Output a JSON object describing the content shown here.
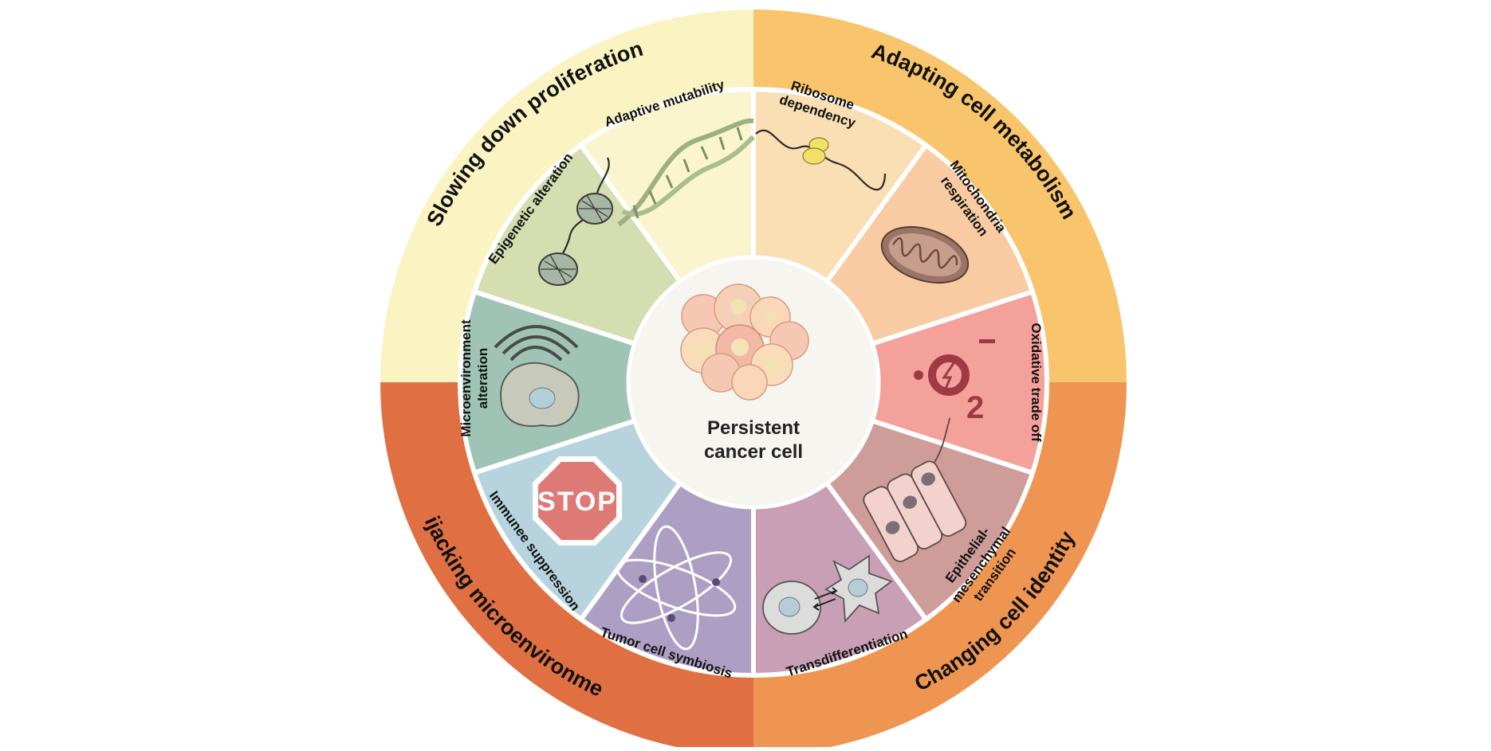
{
  "diagram": {
    "center": {
      "line1": "Persistent",
      "line2": "cancer cell",
      "fill": "#f7f5ef"
    },
    "quadrants": [
      {
        "id": "q-slowing",
        "label": "Slowing down proliferation",
        "color": "#faf3c2"
      },
      {
        "id": "q-adapting",
        "label": "Adapting cell metabolism",
        "color": "#f8c56c"
      },
      {
        "id": "q-changing",
        "label": "Changing cell identity",
        "color": "#ef9552"
      },
      {
        "id": "q-hijacking",
        "label": "Hijacking microenvironment",
        "color": "#e06f42"
      }
    ],
    "segments": [
      {
        "id": "ribosome",
        "lines": [
          "Ribosome",
          "dependency"
        ],
        "color": "#fbdfb4",
        "icon": "ribosome-icon"
      },
      {
        "id": "mitochondria",
        "lines": [
          "Mitochondria",
          "respiration"
        ],
        "color": "#f8cba2",
        "icon": "mitochondria-icon"
      },
      {
        "id": "oxidative",
        "lines": [
          "Oxidative trade off"
        ],
        "color": "#f3a19a",
        "icon": "superoxide-icon"
      },
      {
        "id": "emt",
        "lines": [
          "Epithelial-",
          "mesenchymal",
          "transition"
        ],
        "color": "#cf9d99",
        "icon": "epithelial-cells-icon"
      },
      {
        "id": "transdiff",
        "lines": [
          "Transdifferentiation"
        ],
        "color": "#c99fb5",
        "icon": "transdifferentiation-icon"
      },
      {
        "id": "symbiosis",
        "lines": [
          "Tumor cell symbiosis"
        ],
        "color": "#ad9fc4",
        "icon": "atom-icon"
      },
      {
        "id": "immune",
        "lines": [
          "Immunee suppression"
        ],
        "color": "#b6d3de",
        "icon": "stop-sign-icon"
      },
      {
        "id": "microenv",
        "lines": [
          "Microenvironment",
          "alteration"
        ],
        "color": "#9fc4b5",
        "icon": "signal-cell-icon"
      },
      {
        "id": "epigenetic",
        "lines": [
          "Epigenetic alteration"
        ],
        "color": "#d5deb0",
        "icon": "nucleosome-icon"
      },
      {
        "id": "mutability",
        "lines": [
          "Adaptive mutability"
        ],
        "color": "#faf5cf",
        "icon": "dna-helix-icon"
      }
    ],
    "stop_text": "STOP",
    "o2": {
      "dot": "•",
      "letter": "O",
      "sub": "2",
      "sup": "–"
    },
    "colors": {
      "divider": "#ffffff",
      "ink": "#111111",
      "icon_stroke": "#2b2b2b"
    }
  }
}
